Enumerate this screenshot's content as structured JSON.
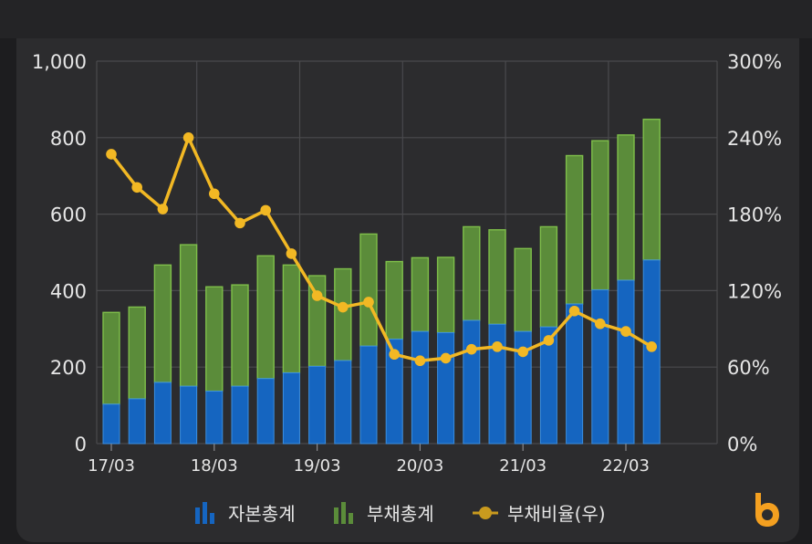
{
  "chart_data": {
    "type": "bar+line",
    "x_tick_labels": [
      "17/03",
      "18/03",
      "19/03",
      "20/03",
      "21/03",
      "22/03"
    ],
    "categories": [
      "17/03",
      "17/06",
      "17/09",
      "17/12",
      "18/03",
      "18/06",
      "18/09",
      "18/12",
      "19/03",
      "19/06",
      "19/09",
      "19/12",
      "20/03",
      "20/06",
      "20/09",
      "20/12",
      "21/03",
      "21/06",
      "21/09",
      "21/12",
      "22/03",
      "22/06"
    ],
    "series": [
      {
        "name": "자본총계",
        "type": "bar",
        "axis": "left",
        "color": "#1565c0",
        "values": [
          103,
          117,
          160,
          150,
          137,
          150,
          170,
          185,
          202,
          217,
          255,
          273,
          293,
          290,
          322,
          312,
          293,
          305,
          365,
          402,
          427,
          480
        ]
      },
      {
        "name": "부채총계",
        "type": "stacked-bar",
        "axis": "left",
        "color": "#5b8c3a",
        "values": [
          240,
          240,
          307,
          370,
          273,
          265,
          321,
          282,
          237,
          240,
          293,
          203,
          193,
          197,
          245,
          247,
          217,
          262,
          388,
          390,
          380,
          368
        ]
      },
      {
        "name": "부채비율(우)",
        "type": "line",
        "axis": "right",
        "color": "#f2b824",
        "values": [
          227,
          201,
          184,
          240,
          196,
          173,
          183,
          149,
          116,
          107,
          111,
          70,
          65,
          67,
          74,
          76,
          72,
          81,
          104,
          94,
          88,
          76
        ]
      }
    ],
    "y_left": {
      "ticks": [
        "0",
        "200",
        "400",
        "600",
        "800",
        "1,000"
      ],
      "range": [
        0,
        1000
      ]
    },
    "y_right": {
      "ticks": [
        "0%",
        "60%",
        "120%",
        "180%",
        "240%",
        "300%"
      ],
      "range": [
        0,
        300
      ]
    },
    "grid": true,
    "legend_position": "bottom-center"
  },
  "colors": {
    "background": "#2c2c2e",
    "equity": "#1565c0",
    "liability": "#5b8c3a",
    "ratio": "#f2b824",
    "logo": "#f4a020"
  },
  "legend": {
    "equity_label": "자본총계",
    "liability_label": "부채총계",
    "ratio_label": "부채비율(우)"
  },
  "icons": {
    "brand": "b-logo-icon"
  }
}
